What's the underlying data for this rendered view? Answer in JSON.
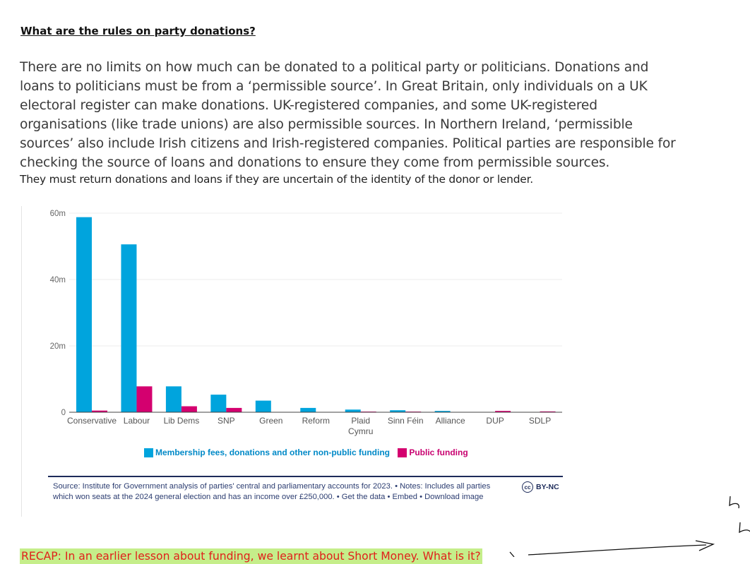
{
  "heading": "What are the rules on party donations?",
  "paragraph": "There are no limits on how much can be donated to a political party or politicians. Donations and loans to politicians must be from a ‘permissible source’. In Great Britain, only individuals on a UK electoral register can make donations. UK-registered companies, and some UK-registered organisations (like trade unions) are also permissible sources. In Northern Ireland, ‘permissible sources’ also include Irish citizens and Irish-registered companies. Political parties are responsible for checking the source of loans and donations to ensure they come from permissible sources.",
  "paragraph_small": "They must return donations and loans if they are uncertain of the identity of the donor or lender.",
  "chart_data": {
    "type": "bar",
    "categories": [
      "Conservative",
      "Labour",
      "Lib Dems",
      "SNP",
      "Green",
      "Reform",
      "Plaid Cymru",
      "Sinn Féin",
      "Alliance",
      "DUP",
      "SDLP"
    ],
    "series": [
      {
        "name": "Membership fees, donations and other non-public funding",
        "color": "#00a4dd",
        "values": [
          58.8,
          50.6,
          7.8,
          5.3,
          3.5,
          1.3,
          0.8,
          0.6,
          0.4,
          0,
          0
        ]
      },
      {
        "name": "Public funding",
        "color": "#d4006f",
        "values": [
          0.5,
          7.8,
          1.8,
          1.3,
          0,
          0,
          0.2,
          0.2,
          0,
          0.4,
          0.25
        ]
      }
    ],
    "yticks": [
      "0",
      "20m",
      "40m",
      "60m"
    ],
    "ylim": [
      0,
      60
    ],
    "grid": true,
    "legend": "bottom"
  },
  "legend": {
    "a": "Membership fees, donations and other non-public funding",
    "b": "Public funding",
    "color_a": "#00a4dd",
    "color_b": "#d4006f"
  },
  "source_text": "Source: Institute for Government analysis of parties' central and parliamentary accounts for 2023. • Notes: Includes all parties which won seats at the 2024 general election and has an income over £250,000. • Get the data • Embed • Download image",
  "license": {
    "icon": "cc",
    "text": "BY-NC"
  },
  "recap": "RECAP: In an earlier lesson about funding, we learnt about Short Money. What is it?"
}
